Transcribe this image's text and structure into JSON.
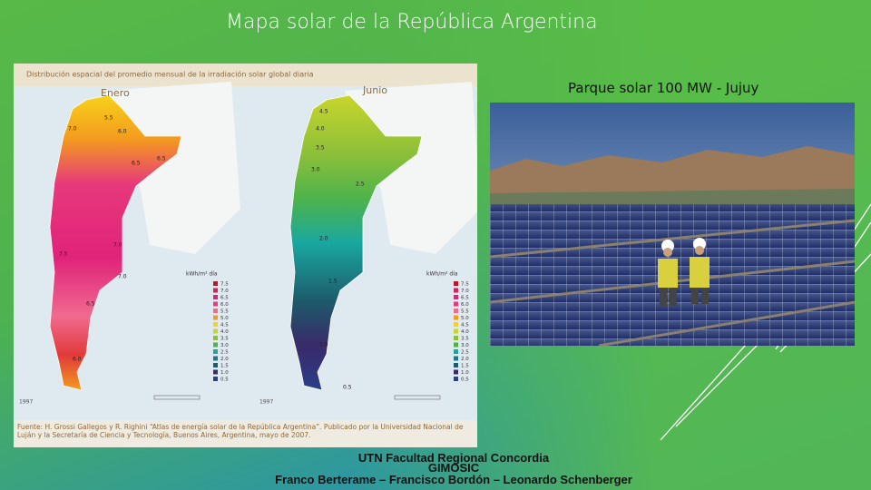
{
  "header": {
    "title": "Mapa solar de la República Argentina"
  },
  "map_figure": {
    "caption": "Distribución espacial del promedio mensual de la irradiación solar global diaria",
    "panels": [
      {
        "label": "Enero",
        "year": "1997",
        "contour_labels": [
          "5.5",
          "6.0",
          "7.0",
          "6.5",
          "6.5",
          "7.0",
          "7.5",
          "7.0",
          "6.5",
          "6.0"
        ]
      },
      {
        "label": "Junio",
        "year": "1997",
        "contour_labels": [
          "4.5",
          "4.0",
          "3.5",
          "3.0",
          "2.5",
          "2.0",
          "1.5",
          "1.0",
          "0.5"
        ]
      }
    ],
    "legend_unit": "kWh/m² día",
    "legend_values": [
      "7.5",
      "7.0",
      "6.5",
      "6.0",
      "5.5",
      "5.0",
      "4.5",
      "4.0",
      "3.5",
      "3.0",
      "2.5",
      "2.0",
      "1.5",
      "1.0",
      "0.5"
    ],
    "source": "Fuente: H. Grossi Gallegos y R. Righini “Atlas de energía solar de la República Argentina”. Publicado por la Universidad Nacional de Luján y la Secretaría de Ciencia y Tecnología, Buenos Aires, Argentina, mayo de 2007."
  },
  "photo": {
    "caption": "Parque solar 100 MW - Jujuy"
  },
  "footer": {
    "lines": [
      "UTN Facultad Regional Concordia",
      "GIMOSIC",
      "Franco Berterame – Francisco Bordón – Leonardo Schenberger"
    ]
  }
}
